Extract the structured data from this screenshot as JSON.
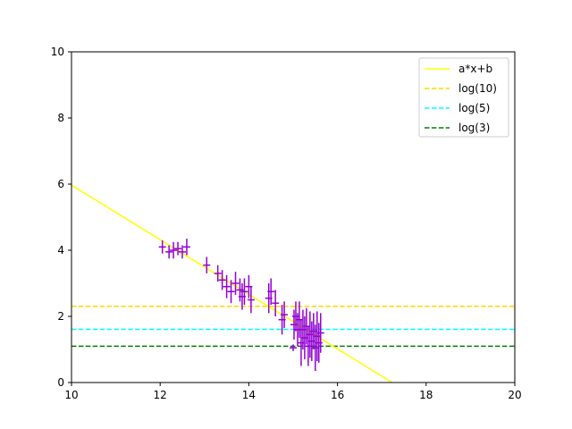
{
  "chart_data": {
    "type": "scatter",
    "title": "",
    "xlabel": "",
    "ylabel": "",
    "xlim": [
      10,
      20
    ],
    "ylim": [
      0,
      10
    ],
    "xticks": [
      "10",
      "12",
      "14",
      "16",
      "18",
      "20"
    ],
    "yticks": [
      "0",
      "2",
      "4",
      "6",
      "8",
      "10"
    ],
    "grid": false,
    "legend_position": "top-right",
    "points": {
      "color": "#9400d3",
      "data": [
        {
          "x": 12.05,
          "y": 4.1,
          "err": 0.2
        },
        {
          "x": 12.2,
          "y": 3.95,
          "err": 0.2
        },
        {
          "x": 12.3,
          "y": 4.0,
          "err": 0.25
        },
        {
          "x": 12.4,
          "y": 4.05,
          "err": 0.2
        },
        {
          "x": 12.5,
          "y": 3.95,
          "err": 0.2
        },
        {
          "x": 12.6,
          "y": 4.1,
          "err": 0.25
        },
        {
          "x": 13.05,
          "y": 3.55,
          "err": 0.25
        },
        {
          "x": 13.3,
          "y": 3.3,
          "err": 0.25
        },
        {
          "x": 13.4,
          "y": 3.1,
          "err": 0.3
        },
        {
          "x": 13.5,
          "y": 2.9,
          "err": 0.35
        },
        {
          "x": 13.6,
          "y": 2.75,
          "err": 0.35
        },
        {
          "x": 13.7,
          "y": 3.0,
          "err": 0.35
        },
        {
          "x": 13.8,
          "y": 2.8,
          "err": 0.35
        },
        {
          "x": 13.85,
          "y": 2.6,
          "err": 0.4
        },
        {
          "x": 13.9,
          "y": 2.75,
          "err": 0.4
        },
        {
          "x": 14.0,
          "y": 2.9,
          "err": 0.35
        },
        {
          "x": 14.05,
          "y": 2.5,
          "err": 0.4
        },
        {
          "x": 14.45,
          "y": 2.55,
          "err": 0.45
        },
        {
          "x": 14.5,
          "y": 2.75,
          "err": 0.4
        },
        {
          "x": 14.6,
          "y": 2.4,
          "err": 0.4
        },
        {
          "x": 14.75,
          "y": 1.9,
          "err": 0.45
        },
        {
          "x": 14.8,
          "y": 2.05,
          "err": 0.4
        },
        {
          "x": 15.0,
          "y": 1.05,
          "err": 0.1
        },
        {
          "x": 15.02,
          "y": 1.75,
          "err": 0.45
        },
        {
          "x": 15.06,
          "y": 2.0,
          "err": 0.45
        },
        {
          "x": 15.1,
          "y": 1.6,
          "err": 0.5
        },
        {
          "x": 15.14,
          "y": 1.9,
          "err": 0.55
        },
        {
          "x": 15.18,
          "y": 1.2,
          "err": 0.7
        },
        {
          "x": 15.22,
          "y": 1.6,
          "err": 0.6
        },
        {
          "x": 15.26,
          "y": 1.35,
          "err": 0.65
        },
        {
          "x": 15.3,
          "y": 1.7,
          "err": 0.55
        },
        {
          "x": 15.34,
          "y": 1.1,
          "err": 0.6
        },
        {
          "x": 15.38,
          "y": 1.45,
          "err": 0.7
        },
        {
          "x": 15.42,
          "y": 1.25,
          "err": 0.6
        },
        {
          "x": 15.46,
          "y": 1.55,
          "err": 0.55
        },
        {
          "x": 15.5,
          "y": 1.05,
          "err": 0.7
        },
        {
          "x": 15.54,
          "y": 1.4,
          "err": 0.75
        },
        {
          "x": 15.58,
          "y": 1.2,
          "err": 0.6
        },
        {
          "x": 15.62,
          "y": 1.5,
          "err": 0.6
        }
      ]
    },
    "series": [
      {
        "name": "a*x+b",
        "kind": "fit",
        "color": "#ffff00",
        "style": "solid",
        "x": [
          10,
          17.23
        ],
        "y": [
          5.97,
          0
        ]
      },
      {
        "name": "log(10)",
        "kind": "hline",
        "color": "#ffd700",
        "style": "dashed",
        "y": 2.3026
      },
      {
        "name": "log(5)",
        "kind": "hline",
        "color": "#00ffff",
        "style": "dashed",
        "y": 1.6094
      },
      {
        "name": "log(3)",
        "kind": "hline",
        "color": "#008000",
        "style": "dashed",
        "y": 1.0986
      }
    ]
  }
}
